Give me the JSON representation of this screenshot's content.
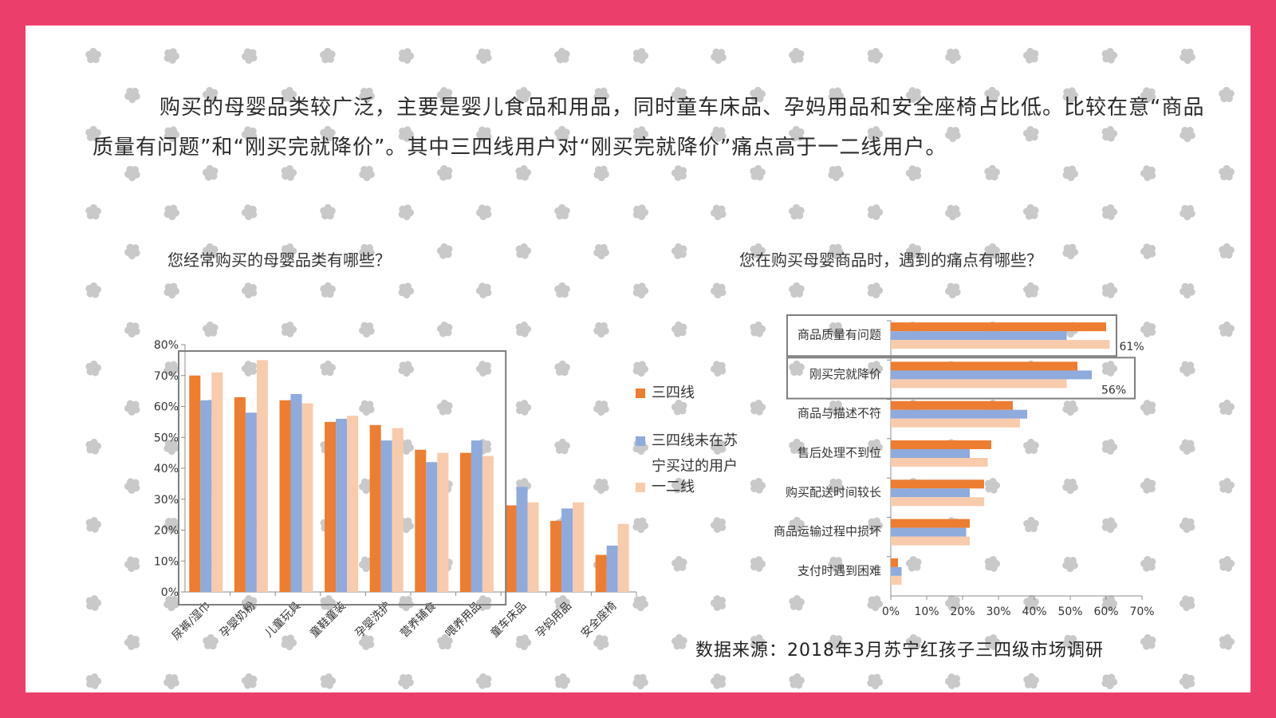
{
  "intro": "购买的母婴品类较广泛，主要是婴儿食品和用品，同时童车床品、孕妈用品和安全座椅占比低。比较在意“商品质量有问题”和“刚买完就降价”。其中三四线用户对“刚买完就降价”痛点高于一二线用户。",
  "source": "数据来源：2018年3月苏宁红孩子三四级市场调研",
  "colors": {
    "frame": "#ec3e6a",
    "star": "#c9c9c9",
    "s1": "#ed7d31",
    "s2": "#8faadc",
    "s3": "#f8cbad"
  },
  "legend": [
    {
      "label": "三四线",
      "color": "#ed7d31"
    },
    {
      "label": "三四线未在苏宁买过的用户",
      "color": "#8faadc"
    },
    {
      "label": "一二线",
      "color": "#f8cbad"
    }
  ],
  "chart_data": [
    {
      "type": "bar",
      "title": "您经常购买的母婴品类有哪些？",
      "categories": [
        "尿裤/湿巾",
        "孕婴奶粉",
        "儿童玩具",
        "童鞋童装",
        "孕婴洗护",
        "营养辅食",
        "喂养用品",
        "童车床品",
        "孕妈用品",
        "安全座椅"
      ],
      "series": [
        {
          "name": "三四线",
          "values": [
            70,
            63,
            62,
            55,
            54,
            46,
            45,
            28,
            23,
            12
          ]
        },
        {
          "name": "三四线未在苏宁买过的用户",
          "values": [
            62,
            58,
            64,
            56,
            49,
            42,
            49,
            34,
            27,
            15
          ]
        },
        {
          "name": "一二线",
          "values": [
            71,
            75,
            61,
            57,
            53,
            45,
            44,
            29,
            29,
            22
          ]
        }
      ],
      "ylim": [
        0,
        80
      ],
      "yticks": [
        "0%",
        "10%",
        "20%",
        "30%",
        "40%",
        "50%",
        "60%",
        "70%",
        "80%"
      ],
      "highlight_categories": 7
    },
    {
      "type": "bar",
      "orientation": "horizontal",
      "title": "您在购买母婴商品时，遇到的痛点有哪些？",
      "categories": [
        "商品质量有问题",
        "刚买完就降价",
        "商品与描述不符",
        "售后处理不到位",
        "购买配送时间较长",
        "商品运输过程中损坏",
        "支付时遇到困难"
      ],
      "series": [
        {
          "name": "三四线",
          "values": [
            60,
            52,
            34,
            28,
            26,
            22,
            2
          ]
        },
        {
          "name": "三四线未在苏宁买过的用户",
          "values": [
            49,
            56,
            38,
            22,
            22,
            21,
            3
          ]
        },
        {
          "name": "一二线",
          "values": [
            61,
            49,
            36,
            27,
            26,
            22,
            3
          ]
        }
      ],
      "xlim": [
        0,
        70
      ],
      "xticks": [
        "0%",
        "10%",
        "20%",
        "30%",
        "40%",
        "50%",
        "60%",
        "70%"
      ],
      "annotations": [
        "61%",
        "56%"
      ],
      "highlight_categories": 2
    }
  ]
}
